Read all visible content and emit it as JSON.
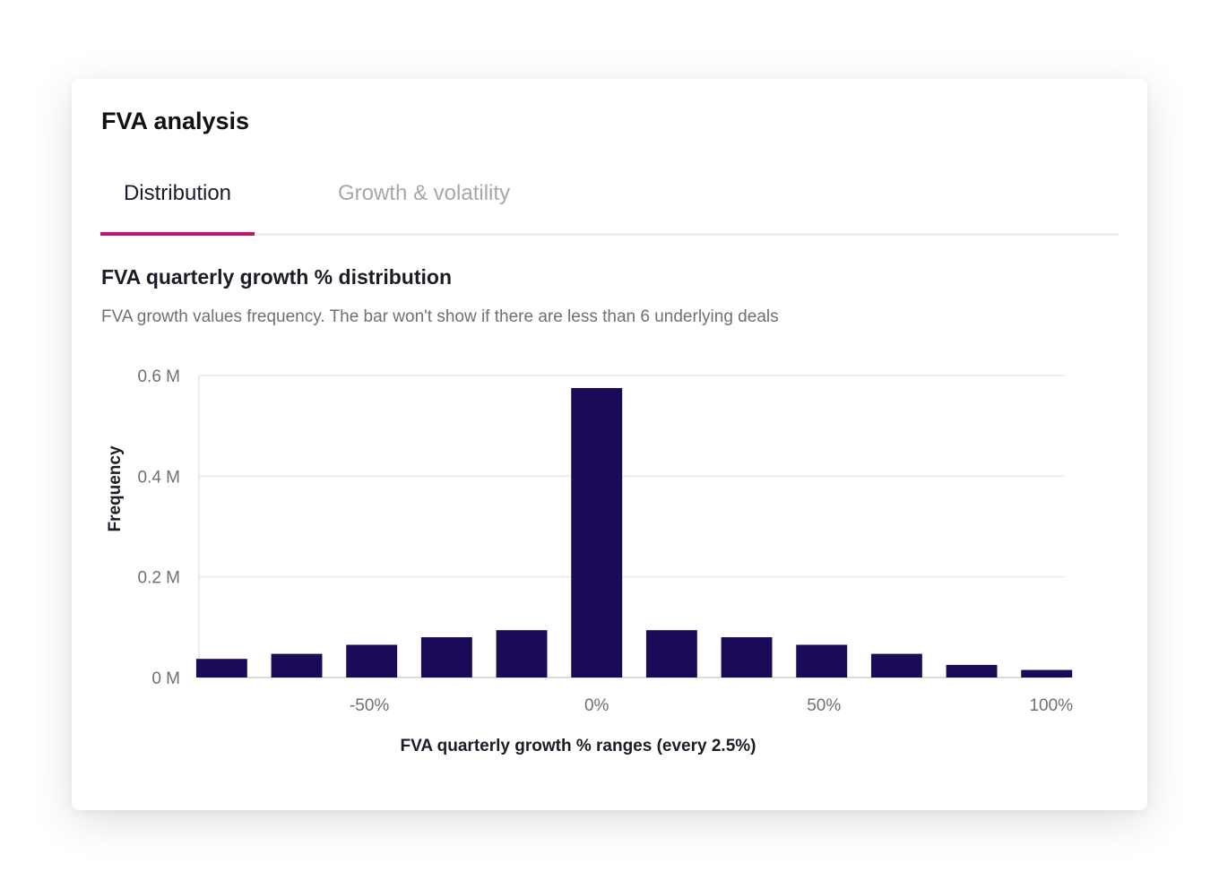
{
  "card": {
    "title": "FVA analysis"
  },
  "tabs": [
    {
      "label": "Distribution",
      "active": true
    },
    {
      "label": "Growth & volatility",
      "active": false
    }
  ],
  "section": {
    "title": "FVA quarterly growth % distribution",
    "subtitle": "FVA growth values frequency. The bar won't show if there are less than 6 underlying deals"
  },
  "colors": {
    "bar": "#1b0a57",
    "accent": "#c8126e",
    "grid": "#ececec"
  },
  "chart_data": {
    "type": "bar",
    "title": "FVA quarterly growth % distribution",
    "xlabel": "FVA quarterly growth % ranges (every 2.5%)",
    "ylabel": "Frequency",
    "ylim": [
      0,
      0.6
    ],
    "yunit": "M",
    "yticks": [
      "0 M",
      "0.2 M",
      "0.4 M",
      "0.6 M"
    ],
    "yticks_values": [
      0,
      0.2,
      0.4,
      0.6
    ],
    "xticks": [
      {
        "label": "-50%",
        "value": -50
      },
      {
        "label": "0%",
        "value": 0
      },
      {
        "label": "50%",
        "value": 50
      },
      {
        "label": "100%",
        "value": 100
      }
    ],
    "x_range": [
      -87.5,
      103
    ],
    "bins": [
      {
        "center": -82.5,
        "value": 0.037
      },
      {
        "center": -66.0,
        "value": 0.047
      },
      {
        "center": -49.5,
        "value": 0.065
      },
      {
        "center": -33.0,
        "value": 0.08
      },
      {
        "center": -16.5,
        "value": 0.094
      },
      {
        "center": 0.0,
        "value": 0.575
      },
      {
        "center": 16.5,
        "value": 0.094
      },
      {
        "center": 33.0,
        "value": 0.08
      },
      {
        "center": 49.5,
        "value": 0.065
      },
      {
        "center": 66.0,
        "value": 0.047
      },
      {
        "center": 82.5,
        "value": 0.025
      },
      {
        "center": 99.0,
        "value": 0.015
      }
    ]
  }
}
